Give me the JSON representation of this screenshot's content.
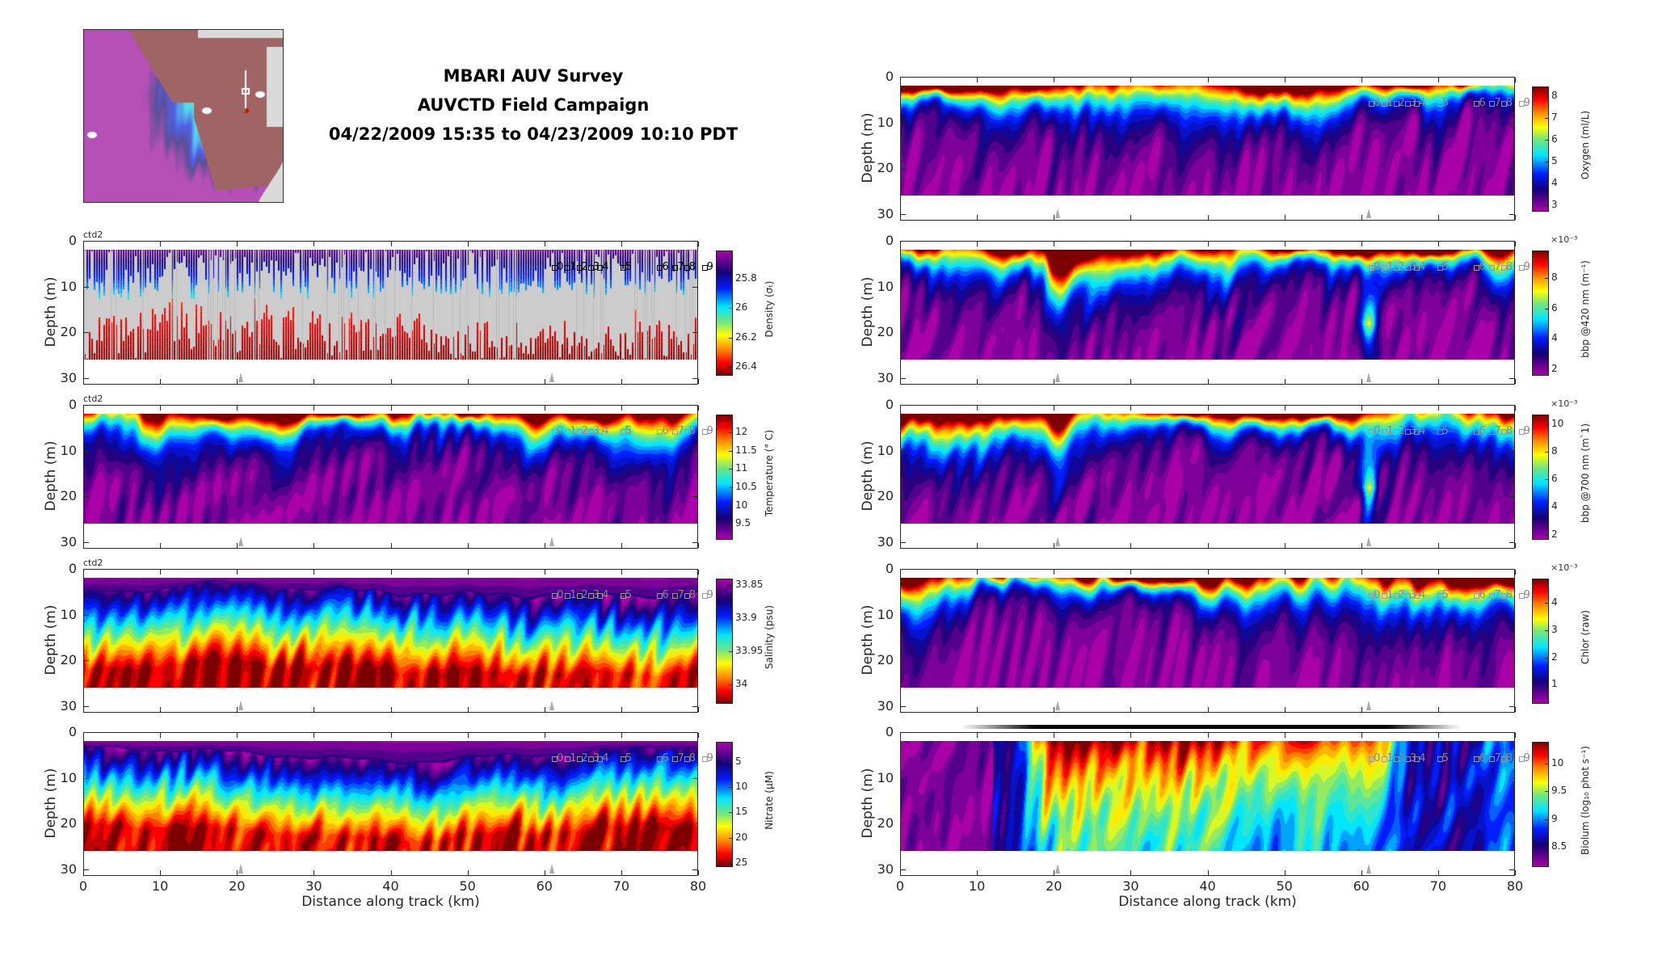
{
  "title": {
    "line1": "MBARI AUV Survey",
    "line2": "AUVCTD Field Campaign",
    "line3": "04/22/2009 15:35 to 04/23/2009 10:10 PDT"
  },
  "chart_data": {
    "type": "heatmap",
    "xlabel": "Distance along track (km)",
    "ylabel": "Depth (m)",
    "xlim": [
      0,
      80
    ],
    "ylim": [
      0,
      31.5
    ],
    "data_depth_range": [
      2,
      26
    ],
    "x_ticks": [
      0,
      10,
      20,
      30,
      40,
      50,
      60,
      70,
      80
    ],
    "y_ticks": [
      0,
      10,
      20,
      30
    ],
    "grid": false,
    "station_labels": [
      "0",
      "1",
      "2",
      "3",
      "4",
      "5",
      "6",
      "7",
      "8",
      "9"
    ],
    "station_x": [
      61.3,
      63,
      64.5,
      66,
      67.2,
      70.2,
      75,
      77,
      78.5,
      80.8
    ],
    "mooring_x": [
      20.5,
      61
    ],
    "panels": [
      {
        "id": "oxygen",
        "column": "right",
        "row": 0,
        "tag": "",
        "colorbar_label": "Oxygen (ml/L)",
        "clim": [
          2.71,
          8.44
        ],
        "reversed": false,
        "ticks": [
          3,
          4,
          5,
          6,
          7,
          8
        ],
        "tick_labels": [
          "3",
          "4",
          "5",
          "6",
          "7",
          "8"
        ],
        "multiplier": "",
        "pattern": "surface"
      },
      {
        "id": "density",
        "column": "left",
        "row": 1,
        "tag": "ctd2",
        "colorbar_label": "Density (σₜ)",
        "clim": [
          25.61,
          26.46
        ],
        "reversed": true,
        "ticks": [
          25.8,
          26,
          26.2,
          26.4
        ],
        "tick_labels": [
          "25.8",
          "26",
          "26.2",
          "26.4"
        ],
        "multiplier": "",
        "pattern": "streaks"
      },
      {
        "id": "temperature",
        "column": "left",
        "row": 2,
        "tag": "ctd2",
        "colorbar_label": "Temperature (° C)",
        "clim": [
          9.06,
          12.49
        ],
        "reversed": false,
        "ticks": [
          9.5,
          10,
          10.5,
          11,
          11.5,
          12
        ],
        "tick_labels": [
          "9.5",
          "10",
          "10.5",
          "11",
          "11.5",
          "12"
        ],
        "multiplier": "",
        "pattern": "surface"
      },
      {
        "id": "salinity",
        "column": "left",
        "row": 3,
        "tag": "ctd2",
        "colorbar_label": "Salinity (psu)",
        "clim": [
          33.84,
          34.03
        ],
        "reversed": true,
        "ticks": [
          33.85,
          33.9,
          33.95,
          34
        ],
        "tick_labels": [
          "33.85",
          "33.9",
          "33.95",
          "34"
        ],
        "multiplier": "",
        "pattern": "deep"
      },
      {
        "id": "nitrate",
        "column": "left",
        "row": 4,
        "tag": "",
        "colorbar_label": "Nitrate (μM)",
        "clim": [
          1.0,
          25.84
        ],
        "reversed": true,
        "ticks": [
          5,
          10,
          15,
          20,
          25
        ],
        "tick_labels": [
          "5",
          "10",
          "15",
          "20",
          "25"
        ],
        "multiplier": "",
        "pattern": "deep"
      },
      {
        "id": "bbp420",
        "column": "right",
        "row": 1,
        "tag": "",
        "colorbar_label": "bbp @420 nm (m⁻¹)",
        "clim": [
          1.58,
          9.81
        ],
        "reversed": false,
        "ticks": [
          2,
          4,
          6,
          8
        ],
        "tick_labels": [
          "2",
          "4",
          "6",
          "8"
        ],
        "multiplier": "×10⁻³",
        "pattern": "plume"
      },
      {
        "id": "bbp700",
        "column": "right",
        "row": 2,
        "tag": "",
        "colorbar_label": "bbp @700 nm (m`1)",
        "clim": [
          1.62,
          10.69
        ],
        "reversed": false,
        "ticks": [
          2,
          4,
          6,
          8,
          10
        ],
        "tick_labels": [
          "2",
          "4",
          "6",
          "8",
          "10"
        ],
        "multiplier": "×10⁻³",
        "pattern": "plume"
      },
      {
        "id": "chlor",
        "column": "right",
        "row": 3,
        "tag": "",
        "colorbar_label": "Chlor (raw)",
        "clim": [
          0.3,
          4.9
        ],
        "reversed": false,
        "ticks": [
          1,
          2,
          3,
          4
        ],
        "tick_labels": [
          "1",
          "2",
          "3",
          "4"
        ],
        "multiplier": "×10⁻³",
        "pattern": "surface"
      },
      {
        "id": "biolum",
        "column": "right",
        "row": 4,
        "tag": "",
        "colorbar_label": "Biolum (log₁₀ phot s⁻¹)",
        "clim": [
          8.13,
          10.4
        ],
        "reversed": false,
        "ticks": [
          8.5,
          9,
          9.5,
          10
        ],
        "tick_labels": [
          "8.5",
          "9",
          "9.5",
          "10"
        ],
        "multiplier": "",
        "pattern": "biolum"
      }
    ]
  },
  "colors": {
    "nodata": "#cccccc",
    "axis": "#262626",
    "station_text": "#888888"
  }
}
